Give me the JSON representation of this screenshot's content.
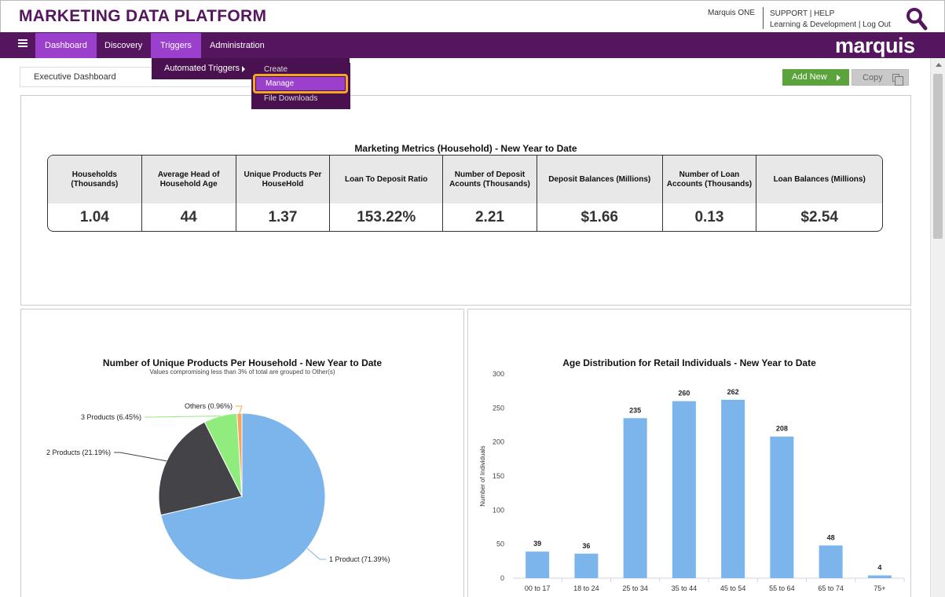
{
  "header": {
    "app_title": "MARKETING DATA PLATFORM",
    "user_name": "Marquis ONE",
    "support": "SUPPORT",
    "help": "HELP",
    "learning": "Learning & Development",
    "logout": "Log Out",
    "brand": "marquis",
    "sep1": "|",
    "sep2": "|"
  },
  "nav": {
    "items": [
      {
        "label": "Dashboard"
      },
      {
        "label": "Discovery"
      },
      {
        "label": "Triggers"
      },
      {
        "label": "Administration"
      }
    ]
  },
  "dropdown": {
    "automated_triggers": "Automated Triggers",
    "submenu": {
      "create": "Create",
      "manage": "Manage",
      "file_downloads": "File Downloads"
    }
  },
  "toolbar": {
    "breadcrumb": "Executive Dashboard",
    "add_new": "Add New",
    "copy": "Copy"
  },
  "colors": {
    "brand_purple": "#56155f",
    "active_purple": "#9b3fcd",
    "add_green": "#5aa33d",
    "highlight_orange": "#f5a623",
    "bar_blue": "#7cb5ec"
  },
  "metrics": {
    "title": "Marketing Metrics (Household) - New Year to Date",
    "columns": [
      {
        "label": "Households (Thousands)",
        "value": "1.04"
      },
      {
        "label": "Average Head of Household Age",
        "value": "44"
      },
      {
        "label": "Unique Products Per HouseHold",
        "value": "1.37"
      },
      {
        "label": "Loan To Deposit Ratio",
        "value": "153.22%"
      },
      {
        "label": "Number of Deposit Acounts (Thousands)",
        "value": "2.21"
      },
      {
        "label": "Deposit Balances (Millions)",
        "value": "$1.66"
      },
      {
        "label": "Number of Loan Accounts (Thousands)",
        "value": "0.13"
      },
      {
        "label": "Loan Balances (Millions)",
        "value": "$2.54"
      }
    ]
  },
  "chart_data": [
    {
      "type": "pie",
      "title": "Number of Unique Products Per Household - New Year to Date",
      "subtitle": "Values compromising less than 3% of total are grouped to Other(s)",
      "slices": [
        {
          "label": "1 Product (71.39%)",
          "value": 71.39,
          "color": "#7cb5ec"
        },
        {
          "label": "2 Products (21.19%)",
          "value": 21.19,
          "color": "#434348"
        },
        {
          "label": "3 Products (6.45%)",
          "value": 6.45,
          "color": "#90ed7d"
        },
        {
          "label": "Others (0.96%)",
          "value": 0.96,
          "color": "#f7a35c"
        }
      ]
    },
    {
      "type": "bar",
      "title": "Age Distribution for Retail Individuals - New Year to Date",
      "ylabel": "Number of Individuals",
      "ylim": [
        0,
        300
      ],
      "yticks": [
        "0",
        "50",
        "100",
        "150",
        "200",
        "250",
        "300"
      ],
      "categories": [
        "00 to 17",
        "18 to 24",
        "25 to 34",
        "35 to 44",
        "45 to 54",
        "55 to 64",
        "65 to 74",
        "75+"
      ],
      "values": [
        39,
        36,
        235,
        260,
        262,
        208,
        48,
        4
      ],
      "color": "#7cb5ec"
    }
  ]
}
